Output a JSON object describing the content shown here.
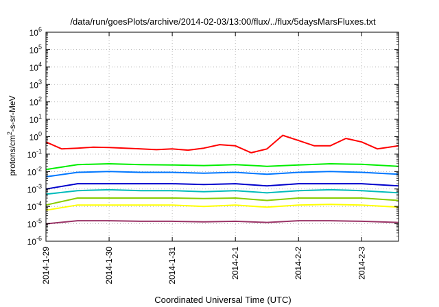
{
  "chart_data": {
    "type": "line",
    "title": "/data/run/goesPlots/archive/2014-02-03/13:00/flux/../flux/5daysMarsFluxes.txt",
    "xlabel": "Coordinated Universal Time (UTC)",
    "ylabel": {
      "prefix": "protons/cm",
      "sup": "2",
      "suffix": "-s-sr-MeV"
    },
    "x_range": [
      "2014-01-29 00:00",
      "2014-02-03 14:00"
    ],
    "x_ticks": [
      "2014-1-29",
      "2014-1-30",
      "2014-1-31",
      "2014-2-1",
      "2014-2-2",
      "2014-2-3"
    ],
    "y_scale": "log",
    "ylim": [
      1e-06,
      1000000.0
    ],
    "y_ticks": [
      {
        "base": "10",
        "exp": "-6"
      },
      {
        "base": "10",
        "exp": "-5"
      },
      {
        "base": "10",
        "exp": "-4"
      },
      {
        "base": "10",
        "exp": "-3"
      },
      {
        "base": "10",
        "exp": "-2"
      },
      {
        "base": "10",
        "exp": "-1"
      },
      {
        "base": "10",
        "exp": "0"
      },
      {
        "base": "10",
        "exp": "1"
      },
      {
        "base": "10",
        "exp": "2"
      },
      {
        "base": "10",
        "exp": "3"
      },
      {
        "base": "10",
        "exp": "4"
      },
      {
        "base": "10",
        "exp": "5"
      },
      {
        "base": "10",
        "exp": "6"
      }
    ],
    "grid": true,
    "legend": "none",
    "series": [
      {
        "color": "#ff0000",
        "x": [
          "2014-01-29 00:00",
          "2014-01-29 06:00",
          "2014-01-29 12:00",
          "2014-01-29 18:00",
          "2014-01-30 00:00",
          "2014-01-30 06:00",
          "2014-01-30 12:00",
          "2014-01-30 18:00",
          "2014-01-31 00:00",
          "2014-01-31 06:00",
          "2014-01-31 12:00",
          "2014-01-31 18:00",
          "2014-02-01 00:00",
          "2014-02-01 06:00",
          "2014-02-01 12:00",
          "2014-02-01 18:00",
          "2014-02-02 00:00",
          "2014-02-02 06:00",
          "2014-02-02 12:00",
          "2014-02-02 18:00",
          "2014-02-03 00:00",
          "2014-02-03 06:00",
          "2014-02-03 14:00"
        ],
        "values": [
          0.5,
          0.2,
          0.22,
          0.25,
          0.24,
          0.22,
          0.2,
          0.18,
          0.2,
          0.17,
          0.22,
          0.35,
          0.3,
          0.12,
          0.2,
          1.2,
          0.6,
          0.3,
          0.3,
          0.8,
          0.5,
          0.2,
          0.3
        ]
      },
      {
        "color": "#00ee00",
        "x": [
          "2014-01-29 00:00",
          "2014-01-29 12:00",
          "2014-01-30 00:00",
          "2014-01-30 12:00",
          "2014-01-31 00:00",
          "2014-01-31 12:00",
          "2014-02-01 00:00",
          "2014-02-01 12:00",
          "2014-02-02 00:00",
          "2014-02-02 12:00",
          "2014-02-03 00:00",
          "2014-02-03 14:00"
        ],
        "values": [
          0.013,
          0.025,
          0.028,
          0.025,
          0.024,
          0.022,
          0.025,
          0.02,
          0.024,
          0.028,
          0.026,
          0.02
        ]
      },
      {
        "color": "#0077ff",
        "x": [
          "2014-01-29 00:00",
          "2014-01-29 12:00",
          "2014-01-30 00:00",
          "2014-01-30 12:00",
          "2014-01-31 00:00",
          "2014-01-31 12:00",
          "2014-02-01 00:00",
          "2014-02-01 12:00",
          "2014-02-02 00:00",
          "2014-02-02 12:00",
          "2014-02-03 00:00",
          "2014-02-03 14:00"
        ],
        "values": [
          0.005,
          0.009,
          0.01,
          0.009,
          0.009,
          0.008,
          0.009,
          0.007,
          0.009,
          0.01,
          0.009,
          0.007
        ]
      },
      {
        "color": "#0000cc",
        "x": [
          "2014-01-29 00:00",
          "2014-01-29 12:00",
          "2014-01-30 00:00",
          "2014-01-30 12:00",
          "2014-01-31 00:00",
          "2014-01-31 12:00",
          "2014-02-01 00:00",
          "2014-02-01 12:00",
          "2014-02-02 00:00",
          "2014-02-02 12:00",
          "2014-02-03 00:00",
          "2014-02-03 14:00"
        ],
        "values": [
          0.001,
          0.002,
          0.002,
          0.002,
          0.002,
          0.0018,
          0.002,
          0.0015,
          0.002,
          0.002,
          0.002,
          0.0015
        ]
      },
      {
        "color": "#00bbbb",
        "x": [
          "2014-01-29 00:00",
          "2014-01-29 12:00",
          "2014-01-30 00:00",
          "2014-01-30 12:00",
          "2014-01-31 00:00",
          "2014-01-31 12:00",
          "2014-02-01 00:00",
          "2014-02-01 12:00",
          "2014-02-02 00:00",
          "2014-02-02 12:00",
          "2014-02-03 00:00",
          "2014-02-03 14:00"
        ],
        "values": [
          0.0005,
          0.0008,
          0.0009,
          0.0008,
          0.0008,
          0.0007,
          0.0008,
          0.0006,
          0.0008,
          0.0009,
          0.0008,
          0.0006
        ]
      },
      {
        "color": "#88cc00",
        "x": [
          "2014-01-29 00:00",
          "2014-01-29 12:00",
          "2014-01-30 00:00",
          "2014-01-30 12:00",
          "2014-01-31 00:00",
          "2014-01-31 12:00",
          "2014-02-01 00:00",
          "2014-02-01 12:00",
          "2014-02-02 00:00",
          "2014-02-02 12:00",
          "2014-02-03 00:00",
          "2014-02-03 14:00"
        ],
        "values": [
          0.00012,
          0.0003,
          0.0003,
          0.0003,
          0.0003,
          0.00028,
          0.0003,
          0.00022,
          0.0003,
          0.0003,
          0.0003,
          0.00022
        ]
      },
      {
        "color": "#ffff00",
        "x": [
          "2014-01-29 00:00",
          "2014-01-29 12:00",
          "2014-01-30 00:00",
          "2014-01-30 12:00",
          "2014-01-31 00:00",
          "2014-01-31 12:00",
          "2014-02-01 00:00",
          "2014-02-01 12:00",
          "2014-02-02 00:00",
          "2014-02-02 12:00",
          "2014-02-03 00:00",
          "2014-02-03 14:00"
        ],
        "values": [
          6e-05,
          0.00012,
          0.00012,
          0.00012,
          0.00012,
          0.0001,
          0.00012,
          9e-05,
          0.00012,
          0.00013,
          0.00012,
          9e-05
        ]
      },
      {
        "color": "#993366",
        "x": [
          "2014-01-29 00:00",
          "2014-01-29 12:00",
          "2014-01-30 00:00",
          "2014-01-30 12:00",
          "2014-01-31 00:00",
          "2014-01-31 12:00",
          "2014-02-01 00:00",
          "2014-02-01 12:00",
          "2014-02-02 00:00",
          "2014-02-02 12:00",
          "2014-02-03 00:00",
          "2014-02-03 14:00"
        ],
        "values": [
          1e-05,
          1.5e-05,
          1.5e-05,
          1.4e-05,
          1.4e-05,
          1.3e-05,
          1.4e-05,
          1.2e-05,
          1.5e-05,
          1.5e-05,
          1.4e-05,
          1.2e-05
        ]
      }
    ]
  }
}
